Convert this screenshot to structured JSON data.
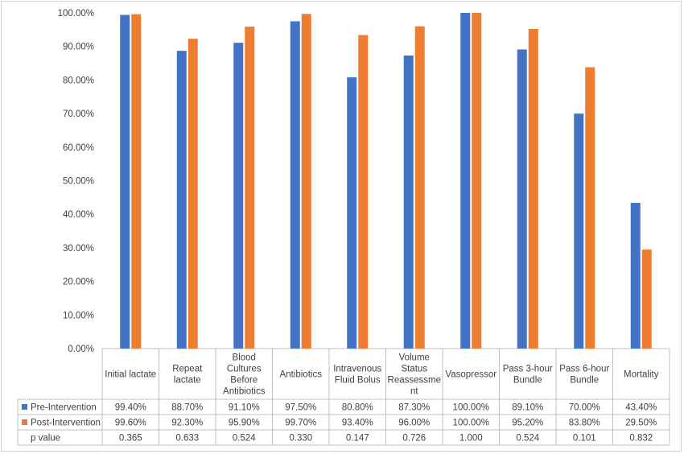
{
  "chart_data": {
    "type": "bar",
    "categories": [
      [
        "Initial lactate"
      ],
      [
        "Repeat",
        "lactate"
      ],
      [
        "Blood",
        "Cultures",
        "Before",
        "Antibiotics"
      ],
      [
        "Antibiotics"
      ],
      [
        "Intravenous",
        "Fluid Bolus"
      ],
      [
        "Volume",
        "Status",
        "Reassessme",
        "nt"
      ],
      [
        "Vasopressor"
      ],
      [
        "Pass 3-hour",
        "Bundle"
      ],
      [
        "Pass 6-hour",
        "Bundle"
      ],
      [
        "Mortality"
      ]
    ],
    "series": [
      {
        "name": "Pre-Intervention",
        "color": "#4472C4",
        "values": [
          99.4,
          88.7,
          91.1,
          97.5,
          80.8,
          87.3,
          100.0,
          89.1,
          70.0,
          43.4
        ],
        "labels": [
          "99.40%",
          "88.70%",
          "91.10%",
          "97.50%",
          "80.80%",
          "87.30%",
          "100.00%",
          "89.10%",
          "70.00%",
          "43.40%"
        ]
      },
      {
        "name": "Post-Intervention",
        "color": "#ED7D31",
        "values": [
          99.6,
          92.3,
          95.9,
          99.7,
          93.4,
          96.0,
          100.0,
          95.2,
          83.8,
          29.5
        ],
        "labels": [
          "99.60%",
          "92.30%",
          "95.90%",
          "99.70%",
          "93.40%",
          "96.00%",
          "100.00%",
          "95.20%",
          "83.80%",
          "29.50%"
        ]
      }
    ],
    "extra_row": {
      "name": "p value",
      "values": [
        "0.365",
        "0.633",
        "0.524",
        "0.330",
        "0.147",
        "0.726",
        "1.000",
        "0.524",
        "0.101",
        "0.832"
      ]
    },
    "y_ticks": [
      "0.00%",
      "10.00%",
      "20.00%",
      "30.00%",
      "40.00%",
      "50.00%",
      "60.00%",
      "70.00%",
      "80.00%",
      "90.00%",
      "100.00%"
    ],
    "ylim": [
      0,
      100
    ],
    "grid": false,
    "legend": "data-table"
  }
}
